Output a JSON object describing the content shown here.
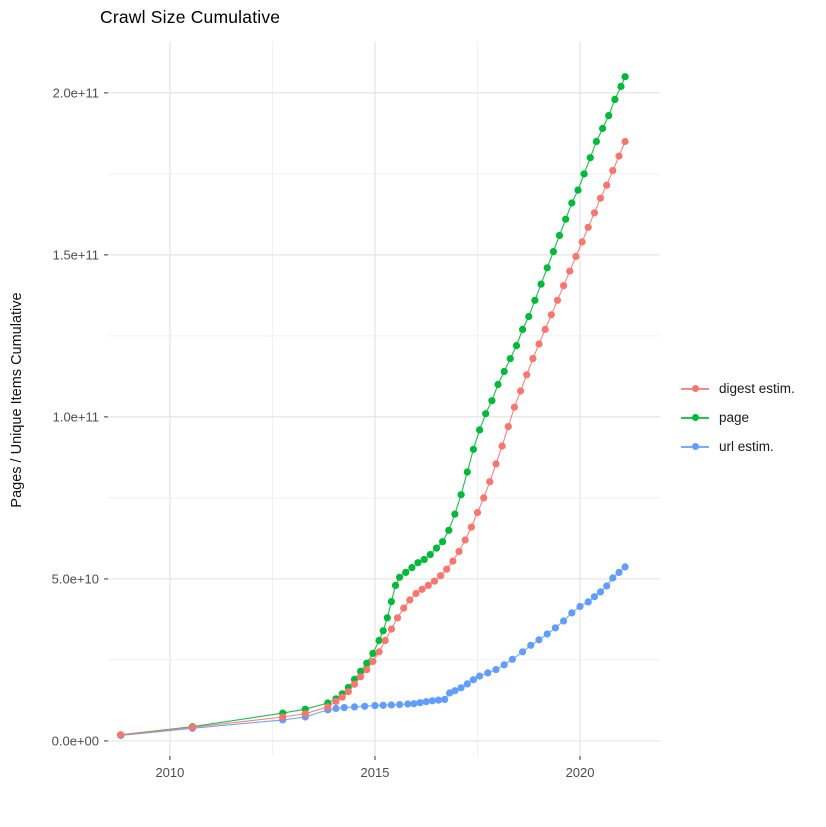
{
  "title": "Crawl Size Cumulative",
  "colors": {
    "background": "#ffffff",
    "grid_major": "#e4e4e4",
    "grid_minor": "#f1f1f1",
    "tick_mark": "#333333",
    "tick_label": "#4d4d4d",
    "title_text": "#000000"
  },
  "chart_data": {
    "type": "scatter",
    "title": "Crawl Size Cumulative",
    "xlabel": "",
    "ylabel": "Pages / Unique Items Cumulative",
    "legend_position": "right",
    "grid": true,
    "xlim": [
      2008.49,
      2021.95
    ],
    "ylim": [
      -4650000000,
      215700000000
    ],
    "x_ticks": [
      {
        "v": 2010,
        "label": "2010"
      },
      {
        "v": 2015,
        "label": "2015"
      },
      {
        "v": 2020,
        "label": "2020"
      }
    ],
    "x_minor_ticks": [
      2012.5,
      2017.5
    ],
    "y_ticks": [
      {
        "v": 0,
        "label": "0.0e+00"
      },
      {
        "v": 50000000000,
        "label": "5.0e+10"
      },
      {
        "v": 100000000000,
        "label": "1.0e+11"
      },
      {
        "v": 150000000000,
        "label": "1.5e+11"
      },
      {
        "v": 200000000000,
        "label": "2.0e+11"
      }
    ],
    "y_minor_ticks": [
      25000000000,
      75000000000,
      125000000000,
      175000000000
    ],
    "draw_order": [
      2,
      1,
      0
    ],
    "series": [
      {
        "name": "digest estim.",
        "color": "#F8766D",
        "points": [
          [
            2008.8,
            1900000000.0
          ],
          [
            2010.55,
            4200000000.0
          ],
          [
            2012.75,
            7400000000.0
          ],
          [
            2013.3,
            8400000000.0
          ],
          [
            2013.85,
            10500000000.0
          ],
          [
            2014.05,
            12200000000.0
          ],
          [
            2014.2,
            13500000000.0
          ],
          [
            2014.35,
            15200000000.0
          ],
          [
            2014.5,
            17500000000.0
          ],
          [
            2014.65,
            19800000000.0
          ],
          [
            2014.8,
            22000000000.0
          ],
          [
            2014.95,
            24500000000.0
          ],
          [
            2015.1,
            27500000000.0
          ],
          [
            2015.25,
            31000000000.0
          ],
          [
            2015.4,
            34500000000.0
          ],
          [
            2015.55,
            38000000000.0
          ],
          [
            2015.7,
            41000000000.0
          ],
          [
            2015.85,
            43500000000.0
          ],
          [
            2016.0,
            45500000000.0
          ],
          [
            2016.15,
            46800000000.0
          ],
          [
            2016.3,
            48000000000.0
          ],
          [
            2016.45,
            49300000000.0
          ],
          [
            2016.6,
            51000000000.0
          ],
          [
            2016.75,
            53000000000.0
          ],
          [
            2016.9,
            55500000000.0
          ],
          [
            2017.05,
            58500000000.0
          ],
          [
            2017.2,
            62000000000.0
          ],
          [
            2017.35,
            66000000000.0
          ],
          [
            2017.5,
            70500000000.0
          ],
          [
            2017.65,
            75000000000.0
          ],
          [
            2017.8,
            80000000000.0
          ],
          [
            2017.95,
            85500000000.0
          ],
          [
            2018.1,
            91000000000.0
          ],
          [
            2018.25,
            97000000000.0
          ],
          [
            2018.4,
            103000000000.0
          ],
          [
            2018.55,
            108000000000.0
          ],
          [
            2018.7,
            113000000000.0
          ],
          [
            2018.85,
            118000000000.0
          ],
          [
            2019.0,
            122500000000.0
          ],
          [
            2019.15,
            127000000000.0
          ],
          [
            2019.3,
            131500000000.0
          ],
          [
            2019.45,
            136000000000.0
          ],
          [
            2019.6,
            140500000000.0
          ],
          [
            2019.75,
            145000000000.0
          ],
          [
            2019.9,
            149500000000.0
          ],
          [
            2020.05,
            154000000000.0
          ],
          [
            2020.2,
            158500000000.0
          ],
          [
            2020.35,
            163000000000.0
          ],
          [
            2020.5,
            167500000000.0
          ],
          [
            2020.65,
            171500000000.0
          ],
          [
            2020.8,
            176000000000.0
          ],
          [
            2020.95,
            180500000000.0
          ],
          [
            2021.1,
            185000000000.0
          ]
        ]
      },
      {
        "name": "page",
        "color": "#00BA38",
        "points": [
          [
            2008.8,
            1900000000.0
          ],
          [
            2010.55,
            4400000000.0
          ],
          [
            2012.75,
            8600000000.0
          ],
          [
            2013.3,
            9800000000.0
          ],
          [
            2013.85,
            11700000000.0
          ],
          [
            2014.05,
            13000000000.0
          ],
          [
            2014.2,
            14500000000.0
          ],
          [
            2014.35,
            16500000000.0
          ],
          [
            2014.5,
            19000000000.0
          ],
          [
            2014.65,
            21500000000.0
          ],
          [
            2014.8,
            24000000000.0
          ],
          [
            2014.95,
            27000000000.0
          ],
          [
            2015.1,
            31000000000.0
          ],
          [
            2015.2,
            34000000000.0
          ],
          [
            2015.3,
            38000000000.0
          ],
          [
            2015.4,
            43000000000.0
          ],
          [
            2015.5,
            48000000000.0
          ],
          [
            2015.6,
            50500000000.0
          ],
          [
            2015.75,
            52000000000.0
          ],
          [
            2015.9,
            53500000000.0
          ],
          [
            2016.05,
            55000000000.0
          ],
          [
            2016.2,
            56000000000.0
          ],
          [
            2016.35,
            57500000000.0
          ],
          [
            2016.5,
            59500000000.0
          ],
          [
            2016.65,
            61500000000.0
          ],
          [
            2016.8,
            65000000000.0
          ],
          [
            2016.95,
            70000000000.0
          ],
          [
            2017.1,
            76000000000.0
          ],
          [
            2017.25,
            83000000000.0
          ],
          [
            2017.4,
            90000000000.0
          ],
          [
            2017.55,
            96000000000.0
          ],
          [
            2017.7,
            101000000000.0
          ],
          [
            2017.85,
            105000000000.0
          ],
          [
            2018.0,
            110000000000.0
          ],
          [
            2018.15,
            114000000000.0
          ],
          [
            2018.3,
            118000000000.0
          ],
          [
            2018.45,
            122000000000.0
          ],
          [
            2018.6,
            127000000000.0
          ],
          [
            2018.75,
            131000000000.0
          ],
          [
            2018.9,
            136000000000.0
          ],
          [
            2019.05,
            141000000000.0
          ],
          [
            2019.2,
            146000000000.0
          ],
          [
            2019.35,
            151000000000.0
          ],
          [
            2019.5,
            156000000000.0
          ],
          [
            2019.65,
            161000000000.0
          ],
          [
            2019.8,
            166000000000.0
          ],
          [
            2019.95,
            170000000000.0
          ],
          [
            2020.1,
            175000000000.0
          ],
          [
            2020.25,
            180000000000.0
          ],
          [
            2020.4,
            185000000000.0
          ],
          [
            2020.55,
            189000000000.0
          ],
          [
            2020.7,
            193000000000.0
          ],
          [
            2020.85,
            198000000000.0
          ],
          [
            2021.0,
            202000000000.0
          ],
          [
            2021.1,
            205000000000.0
          ]
        ]
      },
      {
        "name": "url estim.",
        "color": "#619CFF",
        "points": [
          [
            2008.8,
            1700000000.0
          ],
          [
            2010.55,
            3900000000.0
          ],
          [
            2012.75,
            6500000000.0
          ],
          [
            2013.3,
            7400000000.0
          ],
          [
            2013.85,
            9600000000.0
          ],
          [
            2014.05,
            10000000000.0
          ],
          [
            2014.25,
            10300000000.0
          ],
          [
            2014.5,
            10500000000.0
          ],
          [
            2014.75,
            10700000000.0
          ],
          [
            2015.0,
            10900000000.0
          ],
          [
            2015.2,
            11000000000.0
          ],
          [
            2015.4,
            11100000000.0
          ],
          [
            2015.6,
            11200000000.0
          ],
          [
            2015.8,
            11400000000.0
          ],
          [
            2015.95,
            11500000000.0
          ],
          [
            2016.1,
            11800000000.0
          ],
          [
            2016.25,
            12100000000.0
          ],
          [
            2016.4,
            12400000000.0
          ],
          [
            2016.55,
            12600000000.0
          ],
          [
            2016.7,
            12800000000.0
          ],
          [
            2016.82,
            14800000000.0
          ],
          [
            2016.95,
            15500000000.0
          ],
          [
            2017.1,
            16400000000.0
          ],
          [
            2017.25,
            17600000000.0
          ],
          [
            2017.4,
            18900000000.0
          ],
          [
            2017.55,
            20000000000.0
          ],
          [
            2017.75,
            21000000000.0
          ],
          [
            2017.95,
            22000000000.0
          ],
          [
            2018.15,
            23500000000.0
          ],
          [
            2018.35,
            25200000000.0
          ],
          [
            2018.6,
            27500000000.0
          ],
          [
            2018.8,
            29500000000.0
          ],
          [
            2019.0,
            31200000000.0
          ],
          [
            2019.2,
            33000000000.0
          ],
          [
            2019.4,
            34900000000.0
          ],
          [
            2019.6,
            37000000000.0
          ],
          [
            2019.8,
            39500000000.0
          ],
          [
            2020.0,
            41500000000.0
          ],
          [
            2020.2,
            42900000000.0
          ],
          [
            2020.35,
            44500000000.0
          ],
          [
            2020.5,
            46000000000.0
          ],
          [
            2020.65,
            47800000000.0
          ],
          [
            2020.8,
            50300000000.0
          ],
          [
            2020.95,
            52000000000.0
          ],
          [
            2021.1,
            53700000000.0
          ]
        ]
      }
    ]
  }
}
